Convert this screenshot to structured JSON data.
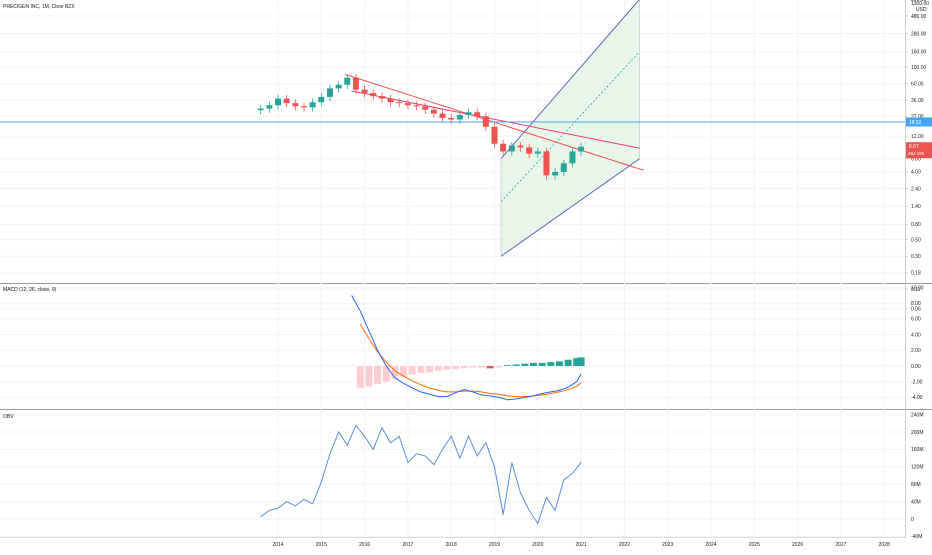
{
  "colors": {
    "up": "#26a69a",
    "down": "#ef5350",
    "macd_line": "#2962ff",
    "signal_line": "#ff6d00",
    "obv_line": "#5b8fd6",
    "hline": "#42a5f5",
    "channel": "#5c6bc0",
    "channel_fill": "#e8f5e9",
    "trend_red": "#ef5350",
    "trend_pink": "#ec407a",
    "grid": "#f0f3fa"
  },
  "header": {
    "main_title": "PRECIGEN INC, 1M, Cboe BZX",
    "macd_title": "MACD (12, 26, close, 9)",
    "obv_title": "OBV"
  },
  "price_axis": {
    "top_label": "1300.00",
    "currency": "USD",
    "ticks": [
      "800.00",
      "480.00",
      "280.00",
      "160.00",
      "100.00",
      "60.00",
      "36.00",
      "22.00",
      "12.00",
      "6.00",
      "4.00",
      "2.40",
      "1.40",
      "0.80",
      "0.50",
      "0.30",
      "0.18",
      "0.11",
      "0.06"
    ],
    "hline_label": "18.52",
    "price_label": "8.67",
    "countdown_label": "36d 19h"
  },
  "macd_axis": {
    "ticks": [
      "10.00",
      "8.00",
      "6.00",
      "4.00",
      "2.00",
      "0.00",
      "-2.00",
      "-4.00"
    ]
  },
  "obv_axis": {
    "ticks": [
      "240M",
      "200M",
      "160M",
      "120M",
      "80M",
      "40M",
      "0",
      "-40M"
    ]
  },
  "time_axis": {
    "labels": [
      "2014",
      "2015",
      "2016",
      "2017",
      "2018",
      "2019",
      "2020",
      "2021",
      "2022",
      "2023",
      "2024",
      "2025",
      "2026",
      "2027",
      "2028"
    ]
  },
  "chart_data": [
    {
      "type": "candlestick",
      "title": "PRECIGEN INC, 1M, Cboe BZX",
      "yscale": "log",
      "series": [
        {
          "name": "close",
          "x": [
            2013.6,
            2013.8,
            2014.0,
            2014.2,
            2014.4,
            2014.6,
            2014.8,
            2015.0,
            2015.2,
            2015.4,
            2015.6,
            2015.8,
            2016.0,
            2016.2,
            2016.4,
            2016.6,
            2016.8,
            2017.0,
            2017.2,
            2017.4,
            2017.6,
            2017.8,
            2018.0,
            2018.2,
            2018.4,
            2018.6,
            2018.8,
            2019.0,
            2019.2,
            2019.4,
            2019.6,
            2019.8,
            2020.0,
            2020.2,
            2020.4,
            2020.6,
            2020.8,
            2021.0
          ],
          "values": [
            28,
            31,
            38,
            33,
            30,
            29,
            34,
            40,
            52,
            58,
            72,
            50,
            45,
            41,
            38,
            34,
            33,
            31,
            30,
            27,
            24,
            21,
            20,
            23,
            25,
            22,
            16,
            9.5,
            7.5,
            9.0,
            8.5,
            7.0,
            7.5,
            3.6,
            4.0,
            5.2,
            7.5,
            8.67
          ]
        }
      ]
    },
    {
      "type": "line",
      "title": "MACD (12, 26, close, 9)",
      "series": [
        {
          "name": "MACD",
          "x": [
            2015.7,
            2015.9,
            2016.1,
            2016.3,
            2016.5,
            2016.7,
            2016.9,
            2017.1,
            2017.3,
            2017.5,
            2017.7,
            2017.9,
            2018.1,
            2018.3,
            2018.5,
            2018.7,
            2018.9,
            2019.1,
            2019.3,
            2019.5,
            2019.7,
            2019.9,
            2020.1,
            2020.3,
            2020.5,
            2020.7,
            2020.9,
            2021.0
          ],
          "values": [
            9.0,
            7.0,
            4.5,
            2.0,
            0.0,
            -1.5,
            -2.2,
            -2.8,
            -3.3,
            -3.6,
            -3.9,
            -3.9,
            -3.4,
            -3.0,
            -3.3,
            -3.7,
            -3.8,
            -4.0,
            -4.3,
            -4.2,
            -4.0,
            -3.8,
            -3.5,
            -3.3,
            -3.1,
            -2.7,
            -2.0,
            -1.0
          ]
        },
        {
          "name": "Signal",
          "x": [
            2015.9,
            2016.1,
            2016.3,
            2016.5,
            2016.7,
            2016.9,
            2017.1,
            2017.3,
            2017.5,
            2017.7,
            2017.9,
            2018.1,
            2018.3,
            2018.5,
            2018.7,
            2018.9,
            2019.1,
            2019.3,
            2019.5,
            2019.7,
            2019.9,
            2020.1,
            2020.3,
            2020.5,
            2020.7,
            2020.9,
            2021.0
          ],
          "values": [
            5.3,
            3.5,
            1.8,
            0.5,
            -0.6,
            -1.3,
            -1.9,
            -2.4,
            -2.8,
            -3.1,
            -3.3,
            -3.3,
            -3.2,
            -3.2,
            -3.3,
            -3.5,
            -3.6,
            -3.8,
            -3.9,
            -3.9,
            -3.8,
            -3.7,
            -3.5,
            -3.3,
            -3.0,
            -2.6,
            -2.1
          ]
        },
        {
          "name": "Histogram",
          "x": [
            2015.9,
            2016.1,
            2016.3,
            2016.5,
            2016.7,
            2016.9,
            2017.1,
            2017.3,
            2017.5,
            2017.7,
            2017.9,
            2018.1,
            2018.3,
            2018.5,
            2018.7,
            2018.9,
            2019.1,
            2019.3,
            2019.5,
            2019.7,
            2019.9,
            2020.1,
            2020.3,
            2020.5,
            2020.7,
            2020.9,
            2021.0
          ],
          "values": [
            -2.8,
            -2.6,
            -2.3,
            -2.0,
            -1.7,
            -1.4,
            -1.1,
            -0.9,
            -0.8,
            -0.6,
            -0.5,
            -0.4,
            -0.3,
            -0.2,
            -0.2,
            -0.3,
            -0.2,
            0.1,
            0.2,
            0.3,
            0.4,
            0.4,
            0.5,
            0.6,
            0.8,
            1.0,
            1.1
          ]
        }
      ]
    },
    {
      "type": "line",
      "title": "OBV",
      "series": [
        {
          "name": "OBV",
          "x": [
            2013.6,
            2013.8,
            2014.0,
            2014.2,
            2014.4,
            2014.6,
            2014.8,
            2015.0,
            2015.2,
            2015.4,
            2015.6,
            2015.8,
            2016.0,
            2016.2,
            2016.4,
            2016.6,
            2016.8,
            2017.0,
            2017.2,
            2017.4,
            2017.6,
            2017.8,
            2018.0,
            2018.2,
            2018.4,
            2018.6,
            2018.8,
            2019.0,
            2019.2,
            2019.4,
            2019.6,
            2019.8,
            2020.0,
            2020.2,
            2020.4,
            2020.6,
            2020.8,
            2021.0
          ],
          "values": [
            5,
            20,
            25,
            40,
            30,
            45,
            35,
            85,
            150,
            200,
            170,
            215,
            190,
            160,
            210,
            175,
            190,
            130,
            150,
            145,
            125,
            160,
            190,
            140,
            190,
            145,
            175,
            120,
            10,
            130,
            60,
            20,
            -10,
            50,
            20,
            90,
            105,
            130
          ]
        }
      ]
    }
  ]
}
